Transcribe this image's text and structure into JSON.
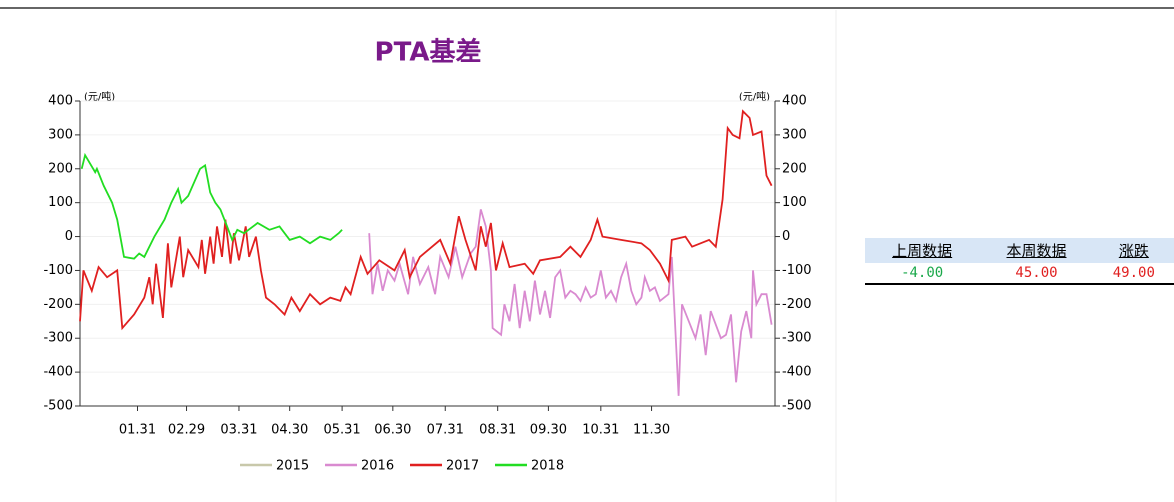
{
  "chart_data": {
    "type": "line",
    "title": "PTA基差",
    "ylabel": "(元/吨)",
    "y2label": "(元/吨)",
    "xlim": [
      -3,
      408
    ],
    "ylim": [
      -500,
      400
    ],
    "y2lim": [
      -500,
      400
    ],
    "xticks": [
      {
        "value": 31,
        "label": "01.31"
      },
      {
        "value": 60,
        "label": "02.29"
      },
      {
        "value": 91,
        "label": "03.31"
      },
      {
        "value": 121,
        "label": "04.30"
      },
      {
        "value": 152,
        "label": "05.31"
      },
      {
        "value": 182,
        "label": "06.30"
      },
      {
        "value": 213,
        "label": "07.31"
      },
      {
        "value": 244,
        "label": "08.31"
      },
      {
        "value": 274,
        "label": "09.30"
      },
      {
        "value": 305,
        "label": "10.31"
      },
      {
        "value": 335,
        "label": "11.30"
      }
    ],
    "yticks": [
      -500,
      -400,
      -300,
      -200,
      -100,
      0,
      100,
      200,
      300,
      400
    ],
    "y2ticks": [
      -500,
      -400,
      -300,
      -200,
      -100,
      0,
      100,
      200,
      300,
      400
    ],
    "grid": true,
    "series": [
      {
        "name": "2015",
        "color": "#c8c8aa",
        "x": [],
        "values": []
      },
      {
        "name": "2016",
        "color": "#d98ad0",
        "x": [
          168,
          170,
          173,
          176,
          179,
          183,
          186,
          191,
          194,
          198,
          203,
          207,
          210,
          215,
          219,
          223,
          228,
          231,
          234,
          237,
          240,
          241,
          246,
          248,
          251,
          254,
          257,
          260,
          263,
          266,
          269,
          272,
          275,
          278,
          281,
          284,
          287,
          290,
          293,
          296,
          299,
          302,
          305,
          308,
          311,
          314,
          317,
          320,
          323,
          326,
          329,
          331,
          334,
          337,
          340,
          345,
          347,
          351,
          353,
          357,
          361,
          364,
          367,
          370,
          373,
          376,
          379,
          382,
          385,
          388,
          391,
          394,
          395,
          397,
          400,
          403,
          406
        ],
        "values": [
          10,
          -170,
          -80,
          -160,
          -100,
          -130,
          -80,
          -170,
          -60,
          -140,
          -90,
          -170,
          -60,
          -120,
          -30,
          -120,
          -50,
          -30,
          80,
          30,
          -100,
          -270,
          -290,
          -200,
          -250,
          -140,
          -270,
          -160,
          -250,
          -130,
          -230,
          -160,
          -240,
          -120,
          -100,
          -180,
          -160,
          -170,
          -190,
          -150,
          -180,
          -170,
          -100,
          -180,
          -160,
          -190,
          -120,
          -80,
          -160,
          -200,
          -180,
          -120,
          -160,
          -150,
          -190,
          -170,
          -60,
          -470,
          -200,
          -250,
          -300,
          -230,
          -350,
          -220,
          -260,
          -300,
          -290,
          -230,
          -430,
          -280,
          -220,
          -300,
          -100,
          -200,
          -170,
          -170,
          -260
        ]
      },
      {
        "name": "2017",
        "color": "#e02020",
        "x": [
          -3,
          -1,
          4,
          8,
          13,
          19,
          22,
          29,
          35,
          38,
          40,
          42,
          46,
          49,
          51,
          56,
          58,
          61,
          67,
          69,
          71,
          74,
          76,
          78,
          81,
          83,
          86,
          88,
          91,
          95,
          97,
          101,
          104,
          107,
          112,
          118,
          122,
          127,
          133,
          139,
          145,
          151,
          154,
          157,
          163,
          167,
          174,
          183,
          189,
          192,
          198,
          210,
          216,
          221,
          225,
          231,
          234,
          237,
          240,
          243,
          247,
          251,
          260,
          265,
          269,
          281,
          287,
          293,
          299,
          303,
          306,
          317,
          329,
          334,
          340,
          345,
          347,
          355,
          359,
          369,
          373,
          377,
          380,
          383,
          387,
          389,
          393,
          395,
          400,
          403,
          406
        ],
        "values": [
          -250,
          -100,
          -160,
          -90,
          -120,
          -100,
          -270,
          -230,
          -180,
          -120,
          -200,
          -80,
          -240,
          -20,
          -150,
          0,
          -120,
          -40,
          -90,
          -10,
          -110,
          0,
          -80,
          30,
          -60,
          50,
          -80,
          10,
          -70,
          30,
          -60,
          0,
          -100,
          -180,
          -200,
          -230,
          -180,
          -220,
          -170,
          -200,
          -180,
          -190,
          -150,
          -170,
          -60,
          -110,
          -70,
          -100,
          -40,
          -120,
          -60,
          -10,
          -80,
          60,
          -10,
          -100,
          30,
          -30,
          40,
          -100,
          -20,
          -90,
          -80,
          -110,
          -70,
          -60,
          -30,
          -60,
          -10,
          50,
          0,
          -10,
          -20,
          -40,
          -80,
          -130,
          -10,
          0,
          -30,
          -10,
          -30,
          110,
          320,
          300,
          290,
          370,
          350,
          300,
          310,
          180,
          150
        ]
      },
      {
        "name": "2018",
        "color": "#22dd22",
        "x": [
          -2,
          0,
          6,
          7,
          11,
          16,
          19,
          23,
          29,
          32,
          35,
          41,
          47,
          51,
          55,
          57,
          61,
          68,
          71,
          74,
          77,
          80,
          84,
          87,
          90,
          94,
          102,
          109,
          115,
          121,
          127,
          133,
          139,
          145,
          150,
          152
        ],
        "values": [
          200,
          240,
          190,
          200,
          150,
          100,
          50,
          -60,
          -65,
          -50,
          -60,
          0,
          50,
          100,
          140,
          100,
          120,
          200,
          210,
          130,
          100,
          80,
          30,
          -10,
          20,
          10,
          40,
          20,
          30,
          -10,
          0,
          -20,
          0,
          -10,
          10,
          20
        ]
      }
    ]
  },
  "table": {
    "headers": [
      "上周数据",
      "本周数据",
      "涨跌"
    ],
    "rows": [
      [
        "-4.00",
        "45.00",
        "49.00"
      ]
    ]
  }
}
